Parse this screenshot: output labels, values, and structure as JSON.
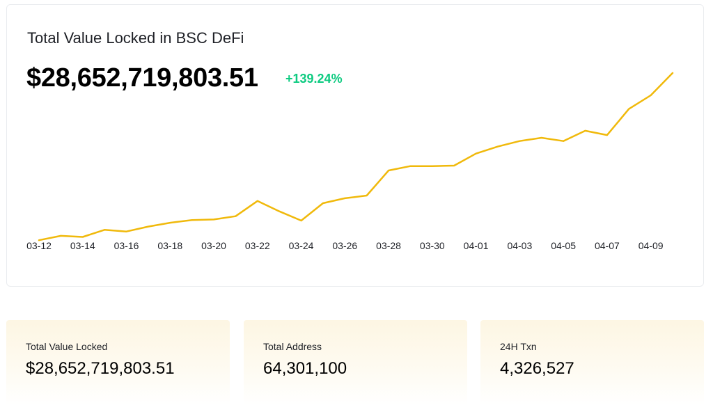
{
  "header": {
    "title": "Total Value Locked in BSC DeFi",
    "tvl": "$28,652,719,803.51",
    "change": "+139.24%"
  },
  "colors": {
    "line": "#f0b90b",
    "positive": "#0ecb81",
    "card_bg": "#fdf6e3"
  },
  "stats": [
    {
      "label": "Total Value Locked",
      "value": "$28,652,719,803.51"
    },
    {
      "label": "Total Address",
      "value": "64,301,100"
    },
    {
      "label": "24H Txn",
      "value": "4,326,527"
    }
  ],
  "chart_data": {
    "type": "line",
    "x": [
      "03-12",
      "03-13",
      "03-14",
      "03-15",
      "03-16",
      "03-17",
      "03-18",
      "03-19",
      "03-20",
      "03-21",
      "03-22",
      "03-23",
      "03-24",
      "03-25",
      "03-26",
      "03-27",
      "03-28",
      "03-29",
      "03-30",
      "03-31",
      "04-01",
      "04-02",
      "04-03",
      "04-04",
      "04-05",
      "04-06",
      "04-07",
      "04-08",
      "04-09",
      "04-10"
    ],
    "tick_labels": [
      "03-12",
      "03-14",
      "03-16",
      "03-18",
      "03-20",
      "03-22",
      "03-24",
      "03-26",
      "03-28",
      "03-30",
      "04-01",
      "04-03",
      "04-05",
      "04-07",
      "04-09"
    ],
    "series": [
      {
        "values": [
          11.95,
          12.35,
          12.25,
          12.9,
          12.75,
          13.2,
          13.55,
          13.8,
          13.85,
          14.15,
          15.55,
          14.6,
          13.75,
          15.35,
          15.8,
          16.05,
          18.35,
          18.75,
          18.75,
          18.8,
          19.9,
          20.55,
          21.05,
          21.35,
          21.05,
          22.0,
          21.6,
          24.0,
          25.25,
          27.3
        ]
      }
    ],
    "title": "Total Value Locked in BSC DeFi",
    "xlabel": "",
    "ylabel": "",
    "ylim": [
      8,
      31
    ],
    "grid": false,
    "y_axis_visible": false
  }
}
